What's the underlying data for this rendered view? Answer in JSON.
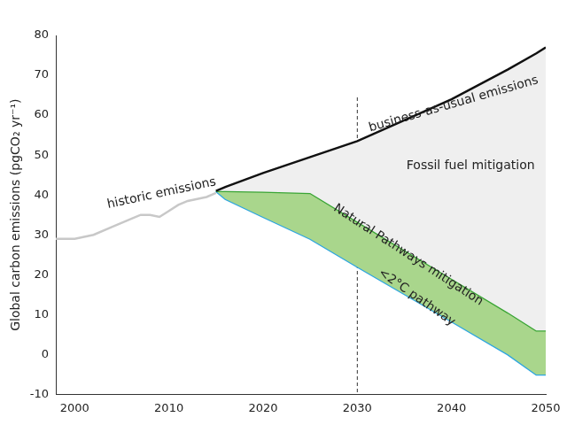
{
  "chart_data": {
    "type": "line",
    "y_label": "Global carbon emissions (pgCO₂ yr⁻¹)",
    "xlim": [
      1998,
      2050
    ],
    "xticks": [
      2000,
      2010,
      2020,
      2030,
      2040,
      2050
    ],
    "ylim": [
      -10,
      80
    ],
    "yticks": [
      -10,
      0,
      10,
      20,
      30,
      40,
      50,
      60,
      70,
      80
    ],
    "grid": false,
    "reference_lines": [
      {
        "x": 2030,
        "line_style": "dashed"
      }
    ],
    "series": [
      {
        "name": "historic emissions",
        "color": "#c8c8c8",
        "x": [
          1998,
          2000,
          2002,
          2004,
          2005,
          2006,
          2007,
          2008,
          2009,
          2010,
          2011,
          2012,
          2013,
          2014,
          2015
        ],
        "values": [
          29,
          29,
          30,
          32,
          33,
          34,
          35,
          35,
          34.5,
          36,
          37.5,
          38.5,
          39,
          39.5,
          40.5
        ]
      },
      {
        "name": "business-as-usual emissions",
        "color": "#111111",
        "x": [
          2015,
          2016,
          2020,
          2025,
          2030,
          2040,
          2046,
          2049,
          2050
        ],
        "values": [
          41,
          42,
          45.5,
          49.5,
          53.5,
          64,
          71.5,
          75.5,
          77
        ],
        "area": {
          "label": "Fossil fuel mitigation",
          "color": "#efefef"
        }
      },
      {
        "color": "#3aa535",
        "x": [
          2015,
          2016,
          2020,
          2025,
          2030,
          2040,
          2046,
          2049,
          2050
        ],
        "values": [
          41,
          41,
          40.8,
          40.5,
          33.3,
          19,
          10.5,
          6,
          6
        ],
        "area": {
          "label": "Natural Pathways mitigation",
          "color": "#a9d68c"
        }
      },
      {
        "name": "<2°C pathway",
        "color": "#2ea6e0",
        "x": [
          2015,
          2016,
          2020,
          2025,
          2030,
          2040,
          2046,
          2049,
          2050
        ],
        "values": [
          41,
          39,
          34.5,
          29,
          22,
          8.3,
          0,
          -5,
          -5
        ]
      }
    ]
  }
}
